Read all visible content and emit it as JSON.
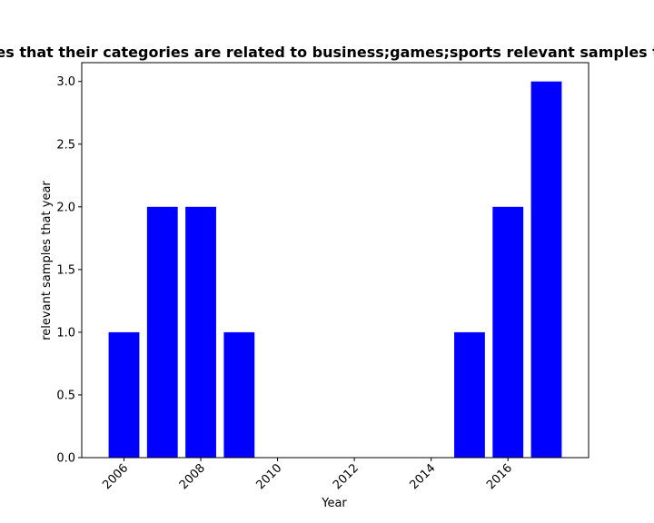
{
  "chart_data": {
    "type": "bar",
    "title": "Number of samples that their categories are related to business;games;sports relevant samples that year in privacy",
    "xlabel": "Year",
    "ylabel": "relevant samples that year",
    "x": [
      2006,
      2007,
      2008,
      2009,
      2015,
      2016,
      2017
    ],
    "values": [
      1,
      2,
      2,
      1,
      1,
      2,
      3
    ],
    "bar_color": "#0000ff",
    "xlim": [
      2004.9,
      2018.1
    ],
    "ylim": [
      0,
      3.15
    ],
    "xticks": [
      2006,
      2008,
      2010,
      2012,
      2014,
      2016
    ],
    "xtick_labels": [
      "2006",
      "2008",
      "2010",
      "2012",
      "2014",
      "2016"
    ],
    "xtick_rotation": 45,
    "yticks": [
      0.0,
      0.5,
      1.0,
      1.5,
      2.0,
      2.5,
      3.0
    ],
    "ytick_labels": [
      "0.0",
      "0.5",
      "1.0",
      "1.5",
      "2.0",
      "2.5",
      "3.0"
    ],
    "grid": false,
    "legend": false
  }
}
